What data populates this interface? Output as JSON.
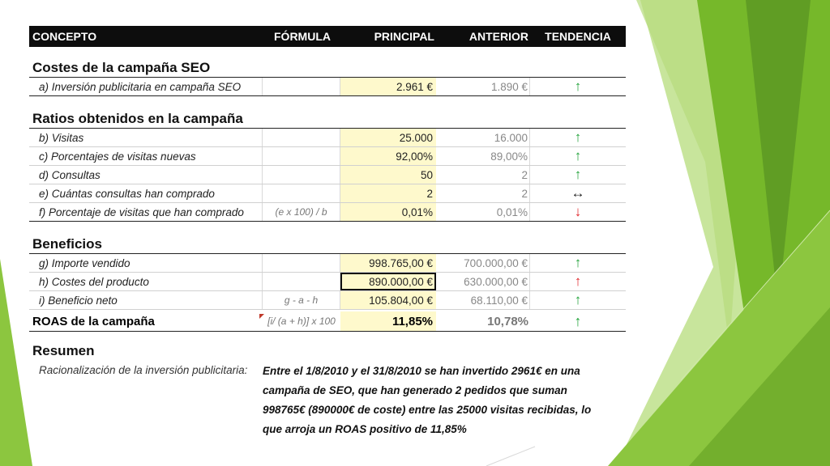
{
  "header": {
    "concepto": "CONCEPTO",
    "formula": "FÓRMULA",
    "principal": "PRINCIPAL",
    "anterior": "ANTERIOR",
    "tendencia": "TENDENCIA"
  },
  "sections": {
    "costes": {
      "title": "Costes de la campaña SEO",
      "rows": [
        {
          "concepto": "a) Inversión publicitaria en campaña SEO",
          "formula": "",
          "principal": "2.961 €",
          "anterior": "1.890 €",
          "tendencia": "↑"
        }
      ]
    },
    "ratios": {
      "title": "Ratios obtenidos en la campaña",
      "rows": [
        {
          "concepto": "b) Visitas",
          "formula": "",
          "principal": "25.000",
          "anterior": "16.000",
          "tendencia": "↑"
        },
        {
          "concepto": "c) Porcentajes de visitas nuevas",
          "formula": "",
          "principal": "92,00%",
          "anterior": "89,00%",
          "tendencia": "↑"
        },
        {
          "concepto": "d) Consultas",
          "formula": "",
          "principal": "50",
          "anterior": "2",
          "tendencia": "↑"
        },
        {
          "concepto": "e) Cuántas consultas han comprado",
          "formula": "",
          "principal": "2",
          "anterior": "2",
          "tendencia": "↔"
        },
        {
          "concepto": "f) Porcentaje de visitas que han comprado",
          "formula": "(e x 100) / b",
          "principal": "0,01%",
          "anterior": "0,01%",
          "tendencia": "↓"
        }
      ]
    },
    "beneficios": {
      "title": "Beneficios",
      "rows": [
        {
          "concepto": "g) Importe vendido",
          "formula": "",
          "principal": "998.765,00 €",
          "anterior": "700.000,00 €",
          "tendencia": "↑"
        },
        {
          "concepto": "h) Costes del producto",
          "formula": "",
          "principal": "890.000,00 €",
          "anterior": "630.000,00 €",
          "tendencia": "↑"
        },
        {
          "concepto": "i) Beneficio neto",
          "formula": "g - a - h",
          "principal": "105.804,00 €",
          "anterior": "68.110,00 €",
          "tendencia": "↑"
        }
      ]
    }
  },
  "roas": {
    "concepto": "ROAS de la campaña",
    "formula": "[i/ (a + h)] x 100",
    "principal": "11,85%",
    "anterior": "10,78%",
    "tendencia": "↑"
  },
  "resumen": {
    "title": "Resumen",
    "label": "Racionalización de la inversión publicitaria:",
    "text": "Entre el 1/8/2010 y el 31/8/2010 se han invertido 2961€ en una campaña de SEO, que han generado 2 pedidos que suman 998765€ (890000€ de coste) entre las 25000 visitas recibidas, lo que arroja un ROAS positivo de 11,85%"
  },
  "colors": {
    "up": "#22a33a",
    "down": "#e0262b",
    "principal_bg": "#fef9cc",
    "header_bg": "#0d0d0d",
    "green_dark": "#4e8a1e",
    "green_light": "#8cc63f"
  }
}
